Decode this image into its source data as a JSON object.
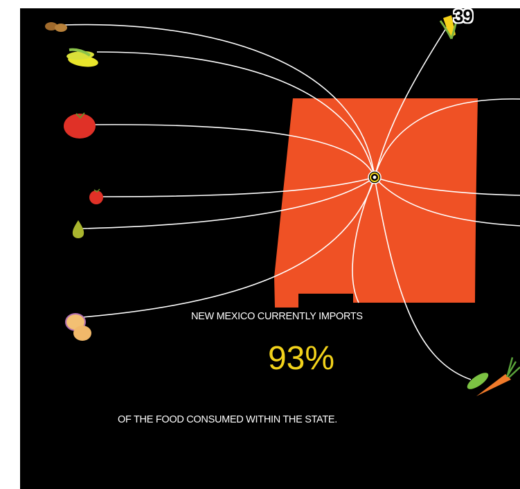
{
  "page_number": "39",
  "headline": "NEW MEXICO CURRENTLY IMPORTS",
  "percentage": "93%",
  "footline": "OF THE FOOD CONSUMED WITHIN THE STATE.",
  "colors": {
    "background": "#000000",
    "state": "#ef5125",
    "lines": "#ffffff",
    "percentage": "#f2d21b"
  },
  "icons": [
    "beans-icon",
    "corn-icon",
    "tomato-icon",
    "small-tomato-icon",
    "pear-icon",
    "potato-icon",
    "corn-cob-icon",
    "cucumber-icon",
    "carrot-icon",
    "target-marker-icon"
  ]
}
